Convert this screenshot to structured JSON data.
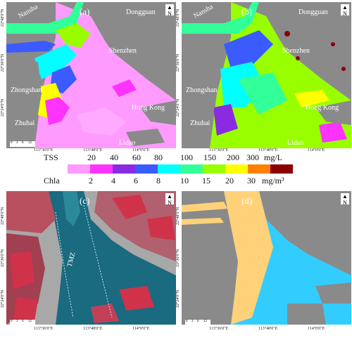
{
  "panels": [
    {
      "label": "(a)",
      "places": [
        "Nansha",
        "Dongguan",
        "Shenzhen",
        "Zhongshan",
        "Hong Kong",
        "Zhuhai",
        "Lidao"
      ]
    },
    {
      "label": "(b)",
      "places": [
        "Nansha",
        "Dongguan",
        "Shenzhen",
        "Zhongshan",
        "Hong Kong",
        "Zhuhai",
        "Lidao"
      ]
    },
    {
      "label": "(c)",
      "places": [
        "TMZ"
      ]
    },
    {
      "label": "(d)",
      "places": []
    }
  ],
  "north_label": "N",
  "scalebar": {
    "ticks": [
      "0",
      "3",
      "6",
      "12"
    ],
    "unit": "km"
  },
  "lon_ticks": [
    "113°36'0\"E",
    "113°48'0\"E",
    "114°0'0\"E"
  ],
  "lat_ticks": [
    "22°48'0\"N",
    "22°36'0\"N",
    "22°24'0\"N",
    "22°12'0\"N"
  ],
  "legend": {
    "tss": {
      "name": "TSS",
      "values": [
        "20",
        "40",
        "60",
        "80",
        "100",
        "150",
        "200",
        "300"
      ],
      "unit": "mg/L"
    },
    "chla": {
      "name": "Chla",
      "values": [
        "2",
        "4",
        "6",
        "8",
        "10",
        "15",
        "20",
        "30"
      ],
      "unit": "mg/m³"
    },
    "colors": [
      "#ff9aff",
      "#ff33ff",
      "#8a2be2",
      "#3b5bff",
      "#00ffff",
      "#33ff99",
      "#99ff00",
      "#ffff00",
      "#ff8000",
      "#8b0000"
    ]
  },
  "colors": {
    "land": "#8a8a8a",
    "sea_a": "#ff9aff",
    "sea_d_turbid": "#ffd27a",
    "sea_d_clear": "#33ccff",
    "tm_water": "#1a6a80",
    "tm_land": "#c0c0c0",
    "tm_veg": "#d0324a"
  }
}
